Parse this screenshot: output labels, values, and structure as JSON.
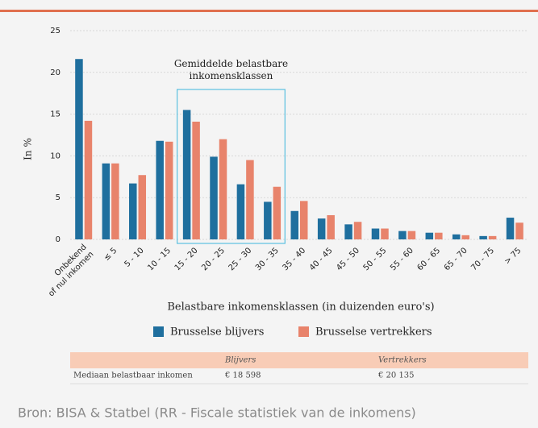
{
  "chart_data": {
    "type": "bar",
    "ylabel": "In %",
    "xlabel": "Belastbare inkomensklassen (in duizenden euro's)",
    "annotation": {
      "text": "Gemiddelde belastbare\ninkomensklassen",
      "from": 4,
      "to": 7,
      "color": "#5bc0e0"
    },
    "categories": [
      "Onbekend\nof nul inkomen",
      "≤ 5",
      "5 - 10",
      "10 - 15",
      "15 - 20",
      "20 - 25",
      "25 - 30",
      "30 - 35",
      "35 - 40",
      "40 - 45",
      "45 - 50",
      "50 - 55",
      "55 - 60",
      "60 - 65",
      "65 - 70",
      "70 - 75",
      "> 75"
    ],
    "series": [
      {
        "name": "Brusselse blijvers",
        "color": "#1f6f9e",
        "values": [
          21.6,
          9.1,
          6.7,
          11.8,
          15.5,
          9.9,
          6.6,
          4.5,
          3.4,
          2.5,
          1.8,
          1.3,
          1.0,
          0.8,
          0.6,
          0.4,
          2.6
        ]
      },
      {
        "name": "Brusselse vertrekkers",
        "color": "#e8836b",
        "values": [
          14.2,
          9.1,
          7.7,
          11.7,
          14.1,
          12.0,
          9.5,
          6.3,
          4.6,
          2.9,
          2.1,
          1.3,
          1.0,
          0.8,
          0.5,
          0.4,
          2.0
        ]
      }
    ],
    "ylim": [
      0,
      25
    ],
    "yticks": [
      0,
      5,
      10,
      15,
      20,
      25
    ],
    "grid": true
  },
  "table": {
    "header": [
      "Blijvers",
      "Vertrekkers"
    ],
    "rows": [
      [
        "Mediaan belastbaar inkomen",
        "€ 18 598",
        "€ 20 135"
      ]
    ]
  },
  "source": "Bron: BISA & Statbel (RR - Fiscale statistiek van de inkomens)"
}
